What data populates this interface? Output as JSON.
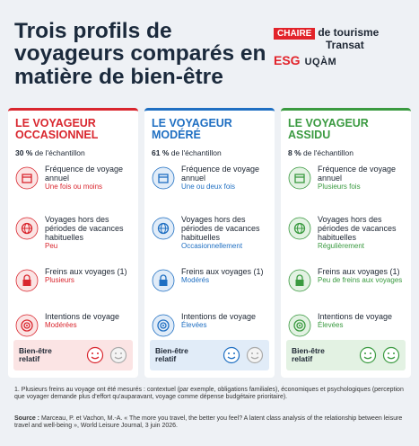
{
  "header": {
    "title": "Trois profils de voyageurs comparés en matière de bien-être",
    "logo": {
      "chaire": "CHAIRE",
      "line1": "de tourisme",
      "line2": "Transat",
      "esg": "ESG",
      "uqam": "UQÀM"
    }
  },
  "columns": [
    {
      "title": "LE VOYAGEUR OCCASIONNEL",
      "color": "#d9262e",
      "tint": "#fbe4e4",
      "share": "30 %",
      "share_note": "de l'échantillon",
      "items": [
        {
          "label": "Fréquence de voyage annuel",
          "value": "Une fois ou moins"
        },
        {
          "label": "Voyages hors des périodes de vacances habituelles",
          "value": "Peu"
        },
        {
          "label": "Freins aux voyages (1)",
          "value": "Plusieurs"
        },
        {
          "label": "Intentions de voyage",
          "value": "Modérées"
        }
      ],
      "wellbeing": "Bien-être relatif"
    },
    {
      "title": "LE VOYAGEUR MODÉRÉ",
      "color": "#1f6fc2",
      "tint": "#e1ecf8",
      "share": "61 %",
      "share_note": "de l'échantillon",
      "items": [
        {
          "label": "Fréquence de voyage annuel",
          "value": "Une ou deux fois"
        },
        {
          "label": "Voyages hors des périodes de vacances habituelles",
          "value": "Occasionnellement"
        },
        {
          "label": "Freins aux voyages (1)",
          "value": "Modérés"
        },
        {
          "label": "Intentions de voyage",
          "value": "Élevées"
        }
      ],
      "wellbeing": "Bien-être relatif"
    },
    {
      "title": "LE VOYAGEUR ASSIDU",
      "color": "#3a9a40",
      "tint": "#e3f2e3",
      "share": "8 %",
      "share_note": "de l'échantillon",
      "items": [
        {
          "label": "Fréquence de voyage annuel",
          "value": "Plusieurs fois"
        },
        {
          "label": "Voyages hors des périodes de vacances habituelles",
          "value": "Régulièrement"
        },
        {
          "label": "Freins aux voyages (1)",
          "value": "Peu de freins aux voyages"
        },
        {
          "label": "Intentions de voyage",
          "value": "Élevées"
        }
      ],
      "wellbeing": "Bien-être relatif"
    }
  ],
  "footnote": "1. Plusieurs freins au voyage ont été mesurés : contextuel (par exemple, obligations familiales), économiques et psychologiques (perception que voyager demande plus d'effort qu'auparavant, voyage comme dépense budgétaire prioritaire).",
  "source": {
    "label": "Source :",
    "text": "Marceau, P. et Vachon, M.-A. « The more you travel, the better you feel? A latent class analysis of the relationship between leisure travel and well-being », World Leisure Journal, 3 juin 2026."
  }
}
